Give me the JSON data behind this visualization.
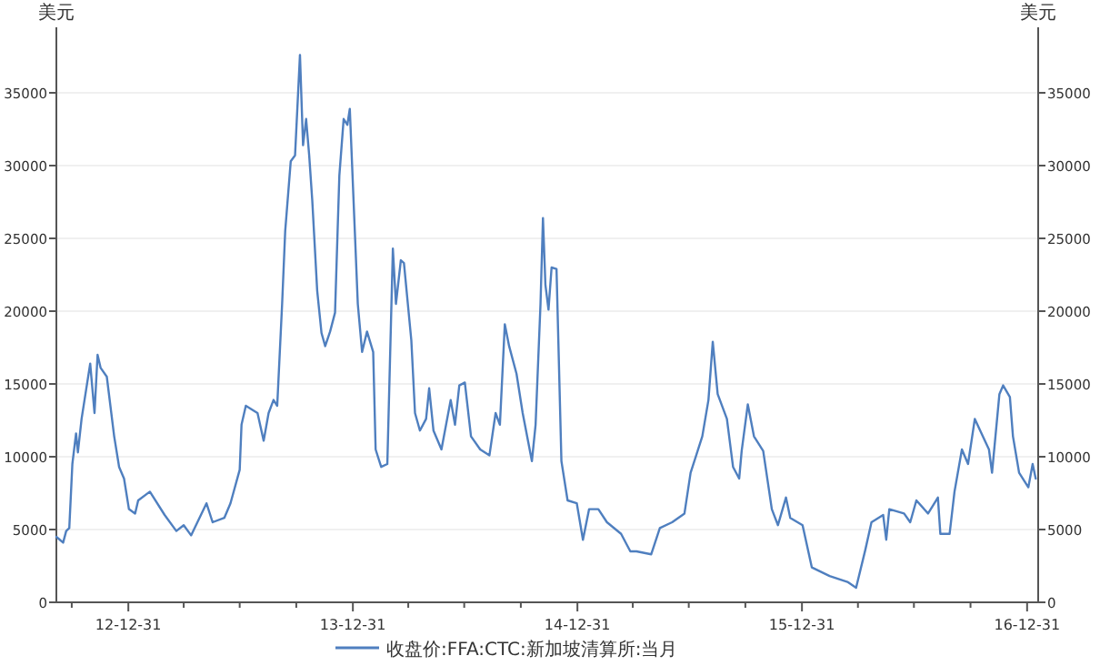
{
  "chart_data": {
    "type": "line",
    "ylabel": "美元",
    "y2label": "美元",
    "x": [
      "2012-09-05",
      "2012-09-16",
      "2012-09-21",
      "2012-09-26",
      "2012-10-01",
      "2012-10-07",
      "2012-10-10",
      "2012-10-16",
      "2012-10-30",
      "2012-11-06",
      "2012-11-11",
      "2012-11-16",
      "2012-11-26",
      "2012-12-08",
      "2012-12-16",
      "2012-12-24",
      "2013-01-01",
      "2013-01-11",
      "2013-01-16",
      "2013-02-04",
      "2013-02-28",
      "2013-03-19",
      "2013-03-31",
      "2013-04-12",
      "2013-05-07",
      "2013-05-17",
      "2013-06-05",
      "2013-06-15",
      "2013-06-30",
      "2013-07-03",
      "2013-07-10",
      "2013-07-29",
      "2013-08-08",
      "2013-08-16",
      "2013-08-24",
      "2013-08-30",
      "2013-09-07",
      "2013-09-12",
      "2013-09-21",
      "2013-09-28",
      "2013-10-06",
      "2013-10-11",
      "2013-10-16",
      "2013-10-21",
      "2013-10-26",
      "2013-11-03",
      "2013-11-10",
      "2013-11-16",
      "2013-11-24",
      "2013-12-02",
      "2013-12-09",
      "2013-12-16",
      "2013-12-22",
      "2013-12-26",
      "2014-01-08",
      "2014-01-15",
      "2014-01-23",
      "2014-02-02",
      "2014-02-06",
      "2014-02-15",
      "2014-02-25",
      "2014-03-06",
      "2014-03-11",
      "2014-03-19",
      "2014-03-24",
      "2014-04-05",
      "2014-04-11",
      "2014-04-19",
      "2014-04-29",
      "2014-05-04",
      "2014-05-11",
      "2014-05-24",
      "2014-06-08",
      "2014-06-15",
      "2014-06-22",
      "2014-07-01",
      "2014-07-11",
      "2014-07-26",
      "2014-08-10",
      "2014-08-20",
      "2014-08-27",
      "2014-09-04",
      "2014-09-11",
      "2014-09-23",
      "2014-10-03",
      "2014-10-18",
      "2014-10-24",
      "2014-11-01",
      "2014-11-05",
      "2014-11-09",
      "2014-11-14",
      "2014-11-19",
      "2014-11-27",
      "2014-12-05",
      "2014-12-15",
      "2014-12-30",
      "2015-01-09",
      "2015-01-19",
      "2015-02-03",
      "2015-02-17",
      "2015-03-12",
      "2015-03-27",
      "2015-04-06",
      "2015-04-30",
      "2015-05-14",
      "2015-06-03",
      "2015-06-23",
      "2015-07-03",
      "2015-07-22",
      "2015-08-01",
      "2015-08-08",
      "2015-08-16",
      "2015-08-31",
      "2015-09-10",
      "2015-09-20",
      "2015-09-24",
      "2015-10-04",
      "2015-10-14",
      "2015-10-29",
      "2015-11-12",
      "2015-11-22",
      "2015-12-05",
      "2015-12-12",
      "2016-01-01",
      "2016-01-16",
      "2016-02-14",
      "2016-03-14",
      "2016-03-28",
      "2016-04-12",
      "2016-04-22",
      "2016-05-11",
      "2016-05-16",
      "2016-05-21",
      "2016-06-14",
      "2016-06-24",
      "2016-07-04",
      "2016-07-23",
      "2016-08-08",
      "2016-08-12",
      "2016-08-27",
      "2016-09-04",
      "2016-09-16",
      "2016-09-26",
      "2016-10-07",
      "2016-10-20",
      "2016-10-30",
      "2016-11-04",
      "2016-11-16",
      "2016-11-22",
      "2016-12-03",
      "2016-12-08",
      "2016-12-18",
      "2017-01-02",
      "2017-01-09",
      "2017-01-14"
    ],
    "series": [
      {
        "name": "收盘价:FFA:CTC:新加坡清算所:当月",
        "color": "#4f7fbf",
        "values": [
          4500,
          4100,
          4900,
          5100,
          9500,
          11600,
          10300,
          12600,
          16400,
          13000,
          17000,
          16100,
          15500,
          11400,
          9300,
          8500,
          6400,
          6100,
          7000,
          7600,
          6000,
          4900,
          5300,
          4600,
          6800,
          5500,
          5800,
          6800,
          9100,
          12200,
          13500,
          13000,
          11100,
          13000,
          13900,
          13500,
          20500,
          25500,
          30300,
          30700,
          37600,
          31400,
          33200,
          30700,
          27600,
          21400,
          18500,
          17600,
          18600,
          19900,
          29300,
          33200,
          32800,
          33900,
          20500,
          17200,
          18600,
          17200,
          10500,
          9300,
          9500,
          24300,
          20500,
          23500,
          23300,
          18000,
          13000,
          11800,
          12600,
          14700,
          11800,
          10500,
          13900,
          12200,
          14900,
          15100,
          11400,
          10500,
          10100,
          13000,
          12200,
          19100,
          17600,
          15700,
          13000,
          9700,
          12200,
          20500,
          26400,
          21800,
          20100,
          23000,
          22900,
          9700,
          7000,
          6800,
          4300,
          6400,
          6400,
          5500,
          4700,
          3500,
          3500,
          3300,
          5100,
          5500,
          6100,
          8900,
          11400,
          13900,
          17900,
          14300,
          12600,
          9300,
          8500,
          10400,
          13600,
          11400,
          10400,
          6400,
          5300,
          7200,
          5800,
          5300,
          2400,
          1800,
          1400,
          1000,
          3600,
          5500,
          6000,
          4300,
          6400,
          6100,
          5500,
          7000,
          6100,
          7200,
          4700,
          4700,
          7600,
          10500,
          9500,
          12600,
          11400,
          10500,
          8900,
          14300,
          14900,
          14100,
          11400,
          8900,
          7900,
          9500,
          8500
        ]
      }
    ],
    "xlim": [
      "2012-09-05",
      "2017-01-18"
    ],
    "xticks": [
      {
        "value": "2012-09-30",
        "label": null
      },
      {
        "value": "2012-12-31",
        "label": "12-12-31"
      },
      {
        "value": "2013-03-31",
        "label": null
      },
      {
        "value": "2013-06-30",
        "label": null
      },
      {
        "value": "2013-09-30",
        "label": null
      },
      {
        "value": "2013-12-31",
        "label": "13-12-31"
      },
      {
        "value": "2014-03-31",
        "label": null
      },
      {
        "value": "2014-06-30",
        "label": null
      },
      {
        "value": "2014-09-30",
        "label": null
      },
      {
        "value": "2014-12-31",
        "label": "14-12-31"
      },
      {
        "value": "2015-03-31",
        "label": null
      },
      {
        "value": "2015-06-30",
        "label": null
      },
      {
        "value": "2015-09-30",
        "label": null
      },
      {
        "value": "2015-12-31",
        "label": "15-12-31"
      },
      {
        "value": "2016-03-31",
        "label": null
      },
      {
        "value": "2016-06-30",
        "label": null
      },
      {
        "value": "2016-09-30",
        "label": null
      },
      {
        "value": "2016-12-31",
        "label": "16-12-31"
      }
    ],
    "ylim": [
      0,
      39500
    ],
    "yticks": [
      0,
      5000,
      10000,
      15000,
      20000,
      25000,
      30000,
      35000
    ],
    "y2lim": [
      0,
      39500
    ],
    "y2ticks": [
      0,
      5000,
      10000,
      15000,
      20000,
      25000,
      30000,
      35000
    ],
    "grid": "y",
    "legend": "bottom"
  }
}
